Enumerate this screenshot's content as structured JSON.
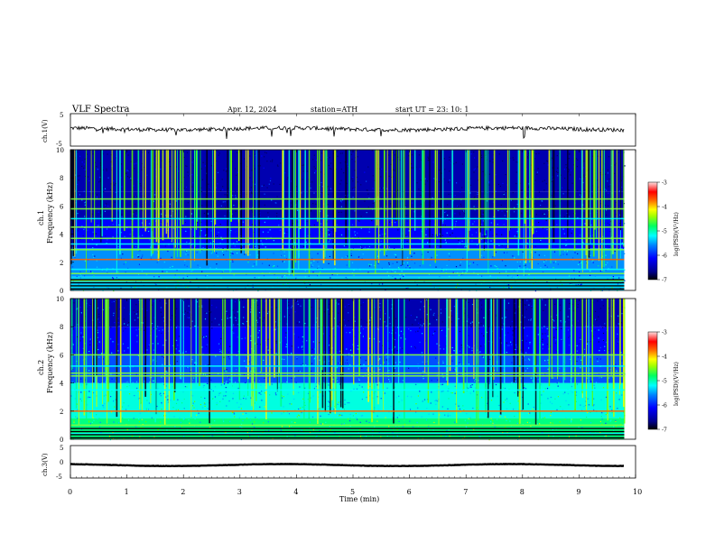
{
  "header": {
    "title": "VLF  Spectra",
    "date": "Apr. 12, 2024",
    "station": "station=ATH",
    "start": "start  UT  =   23: 10: 1"
  },
  "colors": {
    "frame": "#000000",
    "background": "#ffffff",
    "colormap": [
      "#000000",
      "#000080",
      "#0000ff",
      "#0080ff",
      "#00ffff",
      "#00ff80",
      "#80ff00",
      "#ffff00",
      "#ff8000",
      "#ff0000",
      "#ffb0b0",
      "#ffffff"
    ]
  },
  "chart_data": [
    {
      "type": "line",
      "panel": "ch1-waveform",
      "ylabel": "ch.1(V)",
      "ylim": [
        -5,
        5
      ],
      "yticks": [
        "5",
        "-5"
      ],
      "xlim": [
        0,
        10
      ],
      "series": [
        {
          "values_approx_level": 0.3,
          "noise": "fluctuating around ~0 V"
        }
      ]
    },
    {
      "type": "heatmap",
      "panel": "ch1-spectrogram",
      "ylabel_line1": "ch.1",
      "ylabel_line2": "Frequency  (kHz)",
      "ylim": [
        0,
        10
      ],
      "yticks": [
        "0",
        "2",
        "4",
        "6",
        "8",
        "10"
      ],
      "xlim": [
        0,
        10
      ],
      "bands_khz": [
        0.3,
        0.7,
        1.2,
        1.5,
        2.2,
        2.9,
        3.3,
        3.7,
        4.5,
        5.1,
        5.8,
        6.5
      ],
      "colorbar": {
        "label": "log(PSD)(V²/Hz)",
        "ticks": [
          "-3",
          "-4",
          "-5",
          "-6",
          "-7"
        ],
        "range": [
          -7,
          -3
        ]
      }
    },
    {
      "type": "heatmap",
      "panel": "ch2-spectrogram",
      "ylabel_line1": "ch.2",
      "ylabel_line2": "Frequency  (kHz)",
      "ylim": [
        0,
        10
      ],
      "yticks": [
        "0",
        "2",
        "4",
        "6",
        "8",
        "10"
      ],
      "xlim": [
        0,
        10
      ],
      "bands_khz": [
        0.4,
        1.0,
        2.0,
        3.5,
        4.5,
        4.7,
        5.2,
        6.0
      ],
      "colorbar": {
        "label": "log(PSD)(V²/Hz)",
        "ticks": [
          "-3",
          "-4",
          "-5",
          "-6",
          "-7"
        ],
        "range": [
          -7,
          -3
        ]
      }
    },
    {
      "type": "line",
      "panel": "ch3-waveform",
      "ylabel": "ch.3(V)",
      "ylim": [
        -5,
        5
      ],
      "yticks": [
        "5",
        "0",
        "-5"
      ],
      "xlim": [
        0,
        10
      ],
      "series": [
        {
          "values_approx_level": -1.0,
          "noise": "nearly constant"
        }
      ]
    }
  ],
  "xaxis": {
    "label": "Time  (min)",
    "ticks": [
      "0",
      "1",
      "2",
      "3",
      "4",
      "5",
      "6",
      "7",
      "8",
      "9",
      "10"
    ],
    "range": [
      0,
      10
    ],
    "data_end": 9.8
  }
}
